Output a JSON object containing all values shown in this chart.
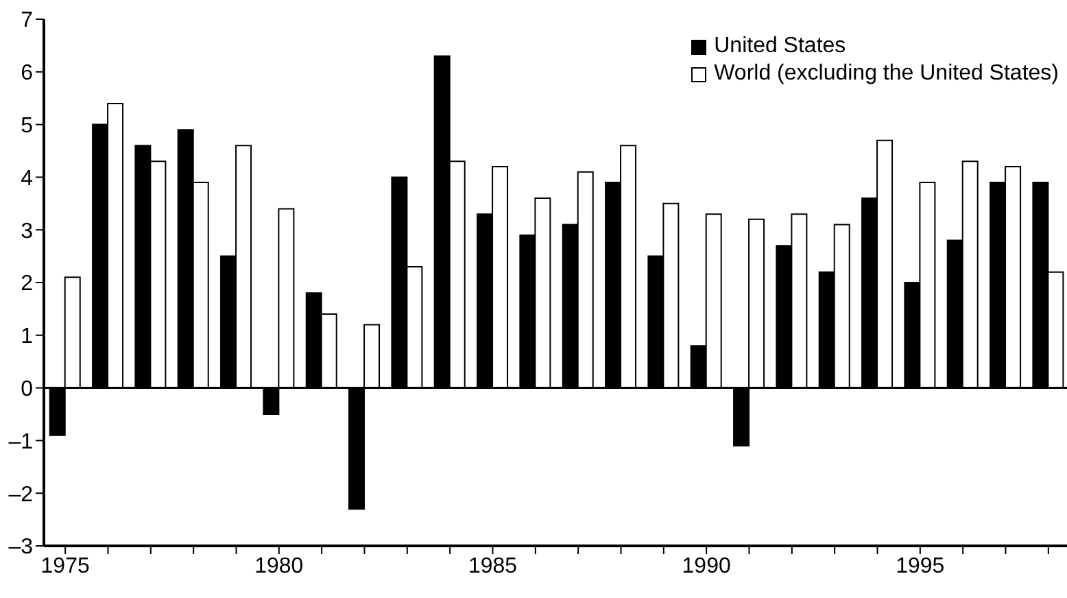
{
  "chart_data": {
    "type": "bar",
    "categories": [
      "1975",
      null,
      null,
      null,
      null,
      "1980",
      null,
      null,
      null,
      null,
      "1985",
      null,
      null,
      null,
      null,
      "1990",
      null,
      null,
      null,
      null,
      "1995",
      null,
      null,
      null
    ],
    "series": [
      {
        "name": "United States",
        "color": "#000000",
        "values": [
          -0.9,
          5.0,
          4.6,
          4.9,
          2.5,
          -0.5,
          1.8,
          -2.3,
          4.0,
          6.3,
          3.3,
          2.9,
          3.1,
          3.9,
          2.5,
          0.8,
          -1.1,
          2.7,
          2.2,
          3.6,
          2.0,
          2.8,
          3.9,
          3.9
        ]
      },
      {
        "name": "World (excluding the United States)",
        "color": "#ffffff",
        "values": [
          2.1,
          5.4,
          4.3,
          3.9,
          4.6,
          3.4,
          1.4,
          1.2,
          2.3,
          4.3,
          4.2,
          3.6,
          4.1,
          4.6,
          3.5,
          3.3,
          3.2,
          3.3,
          3.1,
          4.7,
          3.9,
          4.3,
          4.2,
          2.2
        ]
      }
    ],
    "ylim": [
      -3,
      7
    ],
    "yticks": [
      {
        "value": -3,
        "label": "–3"
      },
      {
        "value": -2,
        "label": "–2"
      },
      {
        "value": -1,
        "label": "–1"
      },
      0,
      1,
      2,
      3,
      4,
      5,
      6,
      7
    ],
    "ref_lines": [
      {
        "axis": "y",
        "value": 0
      }
    ],
    "grid": false,
    "legend": "top right"
  }
}
